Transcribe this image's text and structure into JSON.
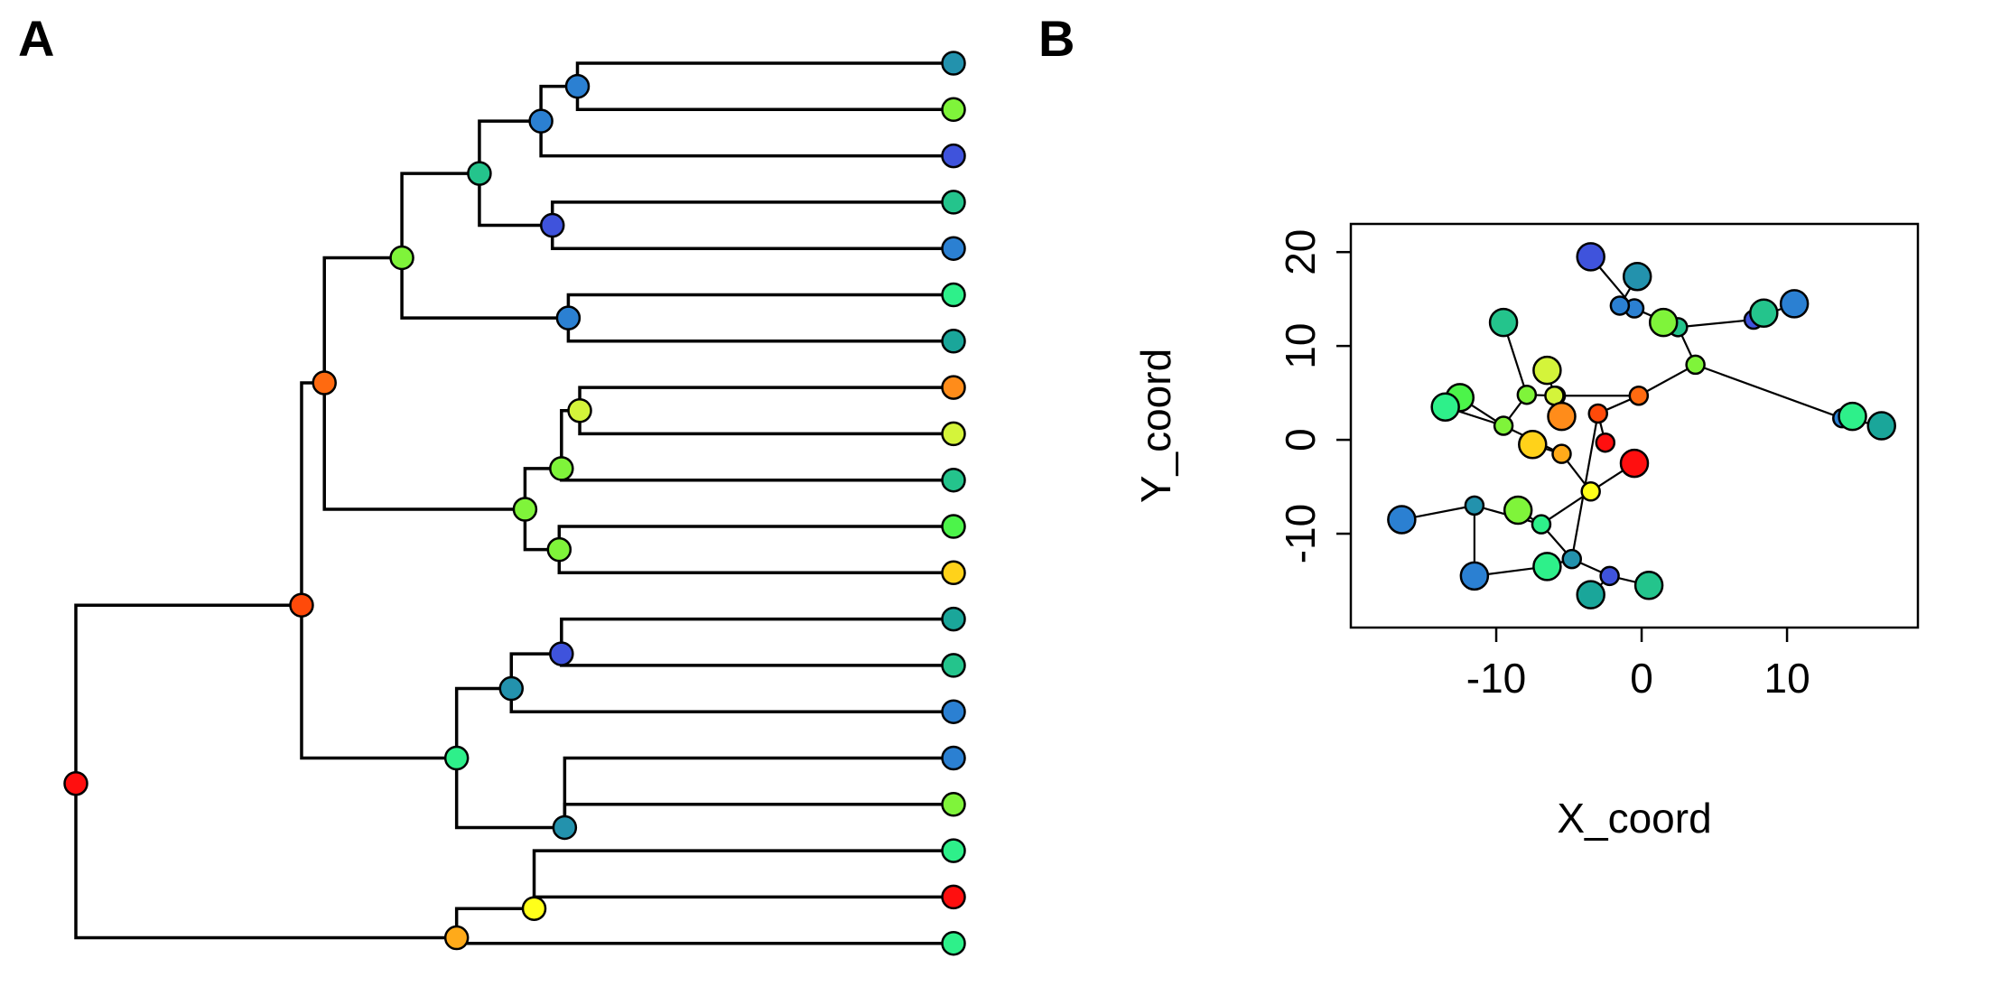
{
  "panels": {
    "a_label": "A",
    "b_label": "B"
  },
  "chart_data": [
    {
      "type": "tree",
      "panel": "A",
      "description_nodes": [
        {
          "id": "n0",
          "depth": 0.0,
          "row": 15.55,
          "color": "#ff0f0f"
        },
        {
          "id": "n1",
          "depth": 4.95,
          "row": 11.7,
          "color": "#ff4a0a"
        },
        {
          "id": "n2",
          "depth": 5.45,
          "row": 6.9,
          "color": "#ff6a10"
        },
        {
          "id": "n3",
          "depth": 7.15,
          "row": 4.2,
          "color": "#7ff43a"
        },
        {
          "id": "n4",
          "depth": 8.85,
          "row": 2.38,
          "color": "#24c48c"
        },
        {
          "id": "n5",
          "depth": 10.2,
          "row": 1.25,
          "color": "#2b80d2"
        },
        {
          "id": "n6",
          "depth": 11.0,
          "row": 0.5,
          "color": "#2b80d2"
        },
        {
          "id": "n7",
          "depth": 10.45,
          "row": 3.5,
          "color": "#3f53dc"
        },
        {
          "id": "n8",
          "depth": 10.8,
          "row": 5.5,
          "color": "#2b80d2"
        },
        {
          "id": "n9",
          "depth": 9.85,
          "row": 9.63,
          "color": "#7ff43a"
        },
        {
          "id": "n10",
          "depth": 10.65,
          "row": 8.75,
          "color": "#7ff43a"
        },
        {
          "id": "n11",
          "depth": 11.05,
          "row": 7.5,
          "color": "#d4f43a"
        },
        {
          "id": "n12",
          "depth": 10.6,
          "row": 10.5,
          "color": "#7ff43a"
        },
        {
          "id": "n13",
          "depth": 8.35,
          "row": 15.0,
          "color": "#2ef08a"
        },
        {
          "id": "n14",
          "depth": 9.55,
          "row": 13.5,
          "color": "#2392ad"
        },
        {
          "id": "n15",
          "depth": 10.65,
          "row": 12.75,
          "color": "#3f53dc"
        },
        {
          "id": "n16",
          "depth": 10.72,
          "row": 16.5,
          "color": "#2392ad"
        },
        {
          "id": "n17",
          "depth": 8.35,
          "row": 18.88,
          "color": "#ffaa1a"
        },
        {
          "id": "n18",
          "depth": 10.05,
          "row": 18.25,
          "color": "#ffff1a"
        }
      ],
      "tips": [
        {
          "parent": "n6",
          "color": "#2392ad"
        },
        {
          "parent": "n6",
          "color": "#7ff43a"
        },
        {
          "parent": "n5",
          "color": "#3f53dc"
        },
        {
          "parent": "n7",
          "color": "#24c48c"
        },
        {
          "parent": "n7",
          "color": "#2b80d2"
        },
        {
          "parent": "n8",
          "color": "#2ef08a"
        },
        {
          "parent": "n8",
          "color": "#1aa69a"
        },
        {
          "parent": "n11",
          "color": "#ff8c1a"
        },
        {
          "parent": "n11",
          "color": "#d4f43a"
        },
        {
          "parent": "n10",
          "color": "#24c48c"
        },
        {
          "parent": "n12",
          "color": "#4cf44a"
        },
        {
          "parent": "n12",
          "color": "#ffd21a"
        },
        {
          "parent": "n15",
          "color": "#1aa69a"
        },
        {
          "parent": "n15",
          "color": "#24c48c"
        },
        {
          "parent": "n14",
          "color": "#2b80d2"
        },
        {
          "parent": "n16",
          "color": "#2b80d2"
        },
        {
          "parent": "n16",
          "color": "#7ff43a"
        },
        {
          "parent": "n18",
          "color": "#2ef08a"
        },
        {
          "parent": "n18",
          "color": "#ff0f0f"
        },
        {
          "parent": "n17",
          "color": "#2ef08a"
        }
      ],
      "edges": [
        [
          "n0",
          "n1"
        ],
        [
          "n0",
          "n17"
        ],
        [
          "n1",
          "n2"
        ],
        [
          "n1",
          "n13"
        ],
        [
          "n2",
          "n3"
        ],
        [
          "n2",
          "n9"
        ],
        [
          "n3",
          "n4"
        ],
        [
          "n3",
          "n8"
        ],
        [
          "n4",
          "n5"
        ],
        [
          "n4",
          "n7"
        ],
        [
          "n5",
          "n6"
        ],
        [
          "n9",
          "n10"
        ],
        [
          "n9",
          "n12"
        ],
        [
          "n10",
          "n11"
        ],
        [
          "n13",
          "n14"
        ],
        [
          "n13",
          "n16"
        ],
        [
          "n14",
          "n15"
        ],
        [
          "n17",
          "n18"
        ]
      ]
    },
    {
      "type": "scatter",
      "panel": "B",
      "xlabel": "X_coord",
      "ylabel": "Y_coord",
      "xlim": [
        -20,
        19
      ],
      "ylim": [
        -20,
        23
      ],
      "xticks": [
        -10,
        0,
        10
      ],
      "yticks": [
        -10,
        0,
        10,
        20
      ],
      "xtick_labels": [
        "-10",
        "0",
        "10"
      ],
      "ytick_labels": [
        "-10",
        "0",
        "10",
        "20"
      ],
      "points": [
        {
          "id": "p0",
          "x": -2.5,
          "y": -0.3,
          "size": "small",
          "color": "#ff0f0f"
        },
        {
          "id": "p1",
          "x": -3.0,
          "y": 2.8,
          "size": "small",
          "color": "#ff4a0a"
        },
        {
          "id": "p2",
          "x": -0.2,
          "y": 4.7,
          "size": "small",
          "color": "#ff6a10"
        },
        {
          "id": "p3",
          "x": 3.7,
          "y": 8.0,
          "size": "small",
          "color": "#7ff43a"
        },
        {
          "id": "p4",
          "x": 2.5,
          "y": 12.0,
          "size": "small",
          "color": "#24c48c"
        },
        {
          "id": "p5",
          "x": -0.5,
          "y": 14.0,
          "size": "small",
          "color": "#2b80d2"
        },
        {
          "id": "p6",
          "x": -1.5,
          "y": 14.3,
          "size": "small",
          "color": "#2b80d2"
        },
        {
          "id": "p7",
          "x": 7.7,
          "y": 12.8,
          "size": "small",
          "color": "#3f53dc"
        },
        {
          "id": "p8",
          "x": 13.8,
          "y": 2.3,
          "size": "small",
          "color": "#2b80d2"
        },
        {
          "id": "p9",
          "x": -5.9,
          "y": 4.7,
          "size": "small",
          "color": "#7ff43a"
        },
        {
          "id": "p10",
          "x": -7.9,
          "y": 4.8,
          "size": "small",
          "color": "#7ff43a"
        },
        {
          "id": "p11",
          "x": -6.0,
          "y": 4.7,
          "size": "small",
          "color": "#d4f43a"
        },
        {
          "id": "p12",
          "x": -9.5,
          "y": 1.5,
          "size": "small",
          "color": "#7ff43a"
        },
        {
          "id": "p13",
          "x": -3.5,
          "y": -5.5,
          "size": "small",
          "color": "#ffff1a"
        },
        {
          "id": "p14",
          "x": -5.5,
          "y": -1.5,
          "size": "small",
          "color": "#ffaa1a"
        },
        {
          "id": "p15",
          "x": -6.9,
          "y": -9.0,
          "size": "small",
          "color": "#2ef08a"
        },
        {
          "id": "p16",
          "x": -11.5,
          "y": -7.0,
          "size": "small",
          "color": "#2392ad"
        },
        {
          "id": "p17",
          "x": -4.8,
          "y": -12.7,
          "size": "small",
          "color": "#2392ad"
        },
        {
          "id": "p18",
          "x": -2.2,
          "y": -14.5,
          "size": "small",
          "color": "#3f53dc"
        },
        {
          "id": "t0",
          "x": -0.3,
          "y": 17.4,
          "size": "large",
          "color": "#2392ad"
        },
        {
          "id": "t1",
          "x": 1.5,
          "y": 12.5,
          "size": "large",
          "color": "#7ff43a"
        },
        {
          "id": "t2",
          "x": -3.5,
          "y": 19.5,
          "size": "large",
          "color": "#3f53dc"
        },
        {
          "id": "t3",
          "x": 8.4,
          "y": 13.5,
          "size": "large",
          "color": "#24c48c"
        },
        {
          "id": "t4",
          "x": 10.5,
          "y": 14.5,
          "size": "large",
          "color": "#2b80d2"
        },
        {
          "id": "t5",
          "x": 14.5,
          "y": 2.5,
          "size": "large",
          "color": "#2ef08a"
        },
        {
          "id": "t6",
          "x": 16.5,
          "y": 1.5,
          "size": "large",
          "color": "#1aa69a"
        },
        {
          "id": "t7",
          "x": -5.5,
          "y": 2.5,
          "size": "large",
          "color": "#ff8c1a"
        },
        {
          "id": "t8",
          "x": -6.5,
          "y": 7.4,
          "size": "large",
          "color": "#d4f43a"
        },
        {
          "id": "t9",
          "x": -9.5,
          "y": 12.5,
          "size": "large",
          "color": "#24c48c"
        },
        {
          "id": "t10",
          "x": -12.5,
          "y": 4.5,
          "size": "large",
          "color": "#4cf44a"
        },
        {
          "id": "t11",
          "x": -7.5,
          "y": -0.5,
          "size": "large",
          "color": "#ffd21a"
        },
        {
          "id": "t12",
          "x": -13.5,
          "y": 3.5,
          "size": "large",
          "color": "#2ef08a"
        },
        {
          "id": "t13",
          "x": -16.5,
          "y": -8.5,
          "size": "large",
          "color": "#2b80d2"
        },
        {
          "id": "t14",
          "x": -8.5,
          "y": -7.5,
          "size": "large",
          "color": "#7ff43a"
        },
        {
          "id": "t15",
          "x": -11.5,
          "y": -14.5,
          "size": "large",
          "color": "#2b80d2"
        },
        {
          "id": "t16",
          "x": -6.5,
          "y": -13.5,
          "size": "large",
          "color": "#2ef08a"
        },
        {
          "id": "t17",
          "x": -3.5,
          "y": -16.5,
          "size": "large",
          "color": "#1aa69a"
        },
        {
          "id": "t18",
          "x": 0.5,
          "y": -15.5,
          "size": "large",
          "color": "#24c48c"
        },
        {
          "id": "t19",
          "x": -0.5,
          "y": -2.5,
          "size": "large",
          "color": "#ff0f0f"
        }
      ],
      "links": [
        [
          "p0",
          "p1"
        ],
        [
          "p1",
          "p2"
        ],
        [
          "p1",
          "p17"
        ],
        [
          "p2",
          "p3"
        ],
        [
          "p2",
          "p9"
        ],
        [
          "p3",
          "p4"
        ],
        [
          "p3",
          "p8"
        ],
        [
          "p4",
          "p5"
        ],
        [
          "p4",
          "p7"
        ],
        [
          "p5",
          "p6"
        ],
        [
          "p5",
          "t2"
        ],
        [
          "p6",
          "t0"
        ],
        [
          "p4",
          "t1"
        ],
        [
          "p7",
          "t3"
        ],
        [
          "p7",
          "t4"
        ],
        [
          "p8",
          "t5"
        ],
        [
          "p8",
          "t6"
        ],
        [
          "p9",
          "p11"
        ],
        [
          "p9",
          "p10"
        ],
        [
          "p10",
          "t9"
        ],
        [
          "p10",
          "p12"
        ],
        [
          "p11",
          "t8"
        ],
        [
          "p11",
          "t7"
        ],
        [
          "p12",
          "t10"
        ],
        [
          "p12",
          "t12"
        ],
        [
          "p12",
          "p14"
        ],
        [
          "p14",
          "t11"
        ],
        [
          "p14",
          "p13"
        ],
        [
          "p13",
          "t19"
        ],
        [
          "p13",
          "p15"
        ],
        [
          "p15",
          "p16"
        ],
        [
          "p15",
          "t14"
        ],
        [
          "p15",
          "p17"
        ],
        [
          "p16",
          "t13"
        ],
        [
          "p17",
          "t16"
        ],
        [
          "p17",
          "p18"
        ],
        [
          "p18",
          "t17"
        ],
        [
          "p18",
          "t18"
        ],
        [
          "p16",
          "t15"
        ],
        [
          "t16",
          "t15"
        ]
      ]
    }
  ]
}
